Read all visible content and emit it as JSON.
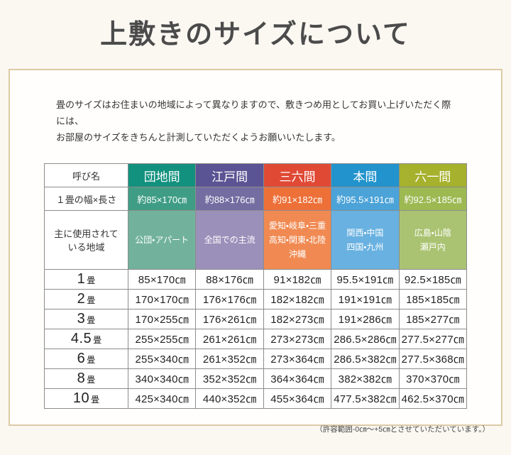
{
  "theme": {
    "page_bg": "#fbf8f2",
    "box_bg": "#fffefd",
    "box_border": "#dccaa5",
    "table_border": "#8c8c8c",
    "cell_text_on_color": "#ffffff",
    "body_text": "#333333"
  },
  "page": {
    "title": "上敷きのサイズについて",
    "intro_line1": "畳のサイズはお住まいの地域によって異なりますので、敷きつめ用としてお買い上げいただく際には、",
    "intro_line2": "お部屋のサイズをきちんと計測していただくようお願いいたします。",
    "footnote": "（許容範囲-0㎝〜+5㎝とさせていただいています。）"
  },
  "table": {
    "corner_label": "呼び名",
    "size_row_label": "１畳の幅×長さ",
    "region_row_label": "主に使用されて\nいる地域",
    "columns": [
      {
        "name": "団地間",
        "header_color": "#12917e",
        "size_color": "#3f9d85",
        "region_color": "#72b29c",
        "size": "約85×170㎝",
        "regions": "公団・アパート",
        "values": [
          "85×170㎝",
          "170×170㎝",
          "170×255㎝",
          "255×255㎝",
          "255×340㎝",
          "340×340㎝",
          "425×340㎝"
        ]
      },
      {
        "name": "江戸間",
        "header_color": "#5a5494",
        "size_color": "#736da1",
        "region_color": "#9a90ba",
        "size": "約88×176㎝",
        "regions": "全国での主流",
        "values": [
          "88×176㎝",
          "176×176㎝",
          "176×261㎝",
          "261×261㎝",
          "261×352㎝",
          "352×352㎝",
          "440×352㎝"
        ]
      },
      {
        "name": "三六間",
        "header_color": "#e04a35",
        "size_color": "#ed7038",
        "region_color": "#f18a52",
        "size": "約91×182㎝",
        "regions": "愛知・岐阜・三重\n高知・関東・北陸\n沖縄",
        "values": [
          "91×182㎝",
          "182×182㎝",
          "182×273㎝",
          "273×273㎝",
          "273×364㎝",
          "364×364㎝",
          "455×364㎝"
        ]
      },
      {
        "name": "本間",
        "header_color": "#2293cc",
        "size_color": "#4ba3d8",
        "region_color": "#68b1e0",
        "size": "約95.5×191㎝",
        "regions": "関西・中国\n四国・九州",
        "values": [
          "95.5×191㎝",
          "191×191㎝",
          "191×286㎝",
          "286.5×286㎝",
          "286.5×382㎝",
          "382×382㎝",
          "477.5×382㎝"
        ]
      },
      {
        "name": "六一間",
        "header_color": "#a6b12d",
        "size_color": "#9cb952",
        "region_color": "#aac372",
        "size": "約92.5×185㎝",
        "regions": "広島・山陰\n瀬戸内",
        "values": [
          "92.5×185㎝",
          "185×185㎝",
          "185×277㎝",
          "277.5×277㎝",
          "277.5×368㎝",
          "370×370㎝",
          "462.5×370㎝"
        ]
      }
    ],
    "rows": [
      {
        "num": "1",
        "unit": "畳"
      },
      {
        "num": "2",
        "unit": "畳"
      },
      {
        "num": "3",
        "unit": "畳"
      },
      {
        "num": "4.5",
        "unit": "畳"
      },
      {
        "num": "6",
        "unit": "畳"
      },
      {
        "num": "8",
        "unit": "畳"
      },
      {
        "num": "10",
        "unit": "畳"
      }
    ]
  }
}
